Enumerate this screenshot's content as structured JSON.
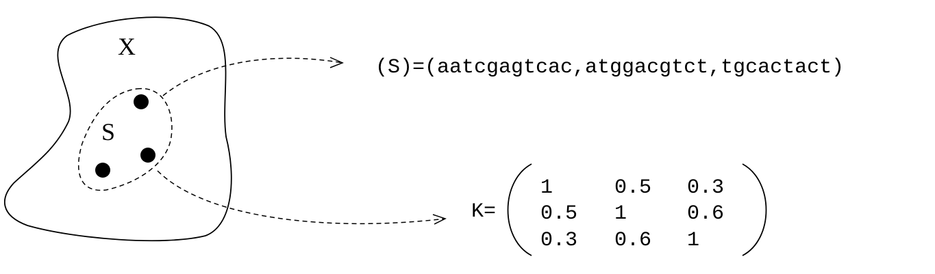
{
  "set_labels": {
    "space": "X",
    "subset": "S"
  },
  "sequence_representation": {
    "text": "(S)=(aatcgagtcac,atggacgtct,tgcactact)"
  },
  "kernel_matrix": {
    "label": "K=",
    "rows": [
      [
        "1",
        "0.5",
        "0.3"
      ],
      [
        "0.5",
        "1",
        "0.6"
      ],
      [
        "0.3",
        "0.6",
        "1"
      ]
    ]
  },
  "points": {
    "count": 3
  }
}
